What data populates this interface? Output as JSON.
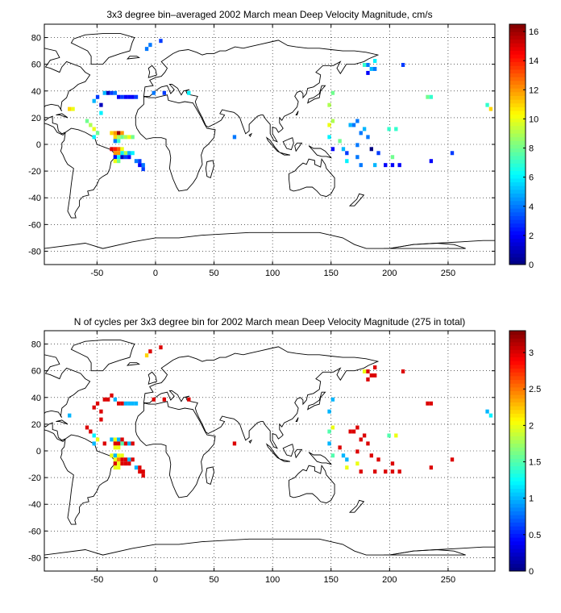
{
  "chart_data": [
    {
      "type": "heatmap",
      "title": "3x3 degree bin–averaged 2002 March mean Deep Velocity Magnitude, cm/s",
      "xlim": [
        -95,
        290
      ],
      "ylim": [
        -90,
        90
      ],
      "xticks": [
        -50,
        0,
        50,
        100,
        150,
        200,
        250
      ],
      "yticks": [
        -80,
        -60,
        -40,
        -20,
        0,
        20,
        40,
        60,
        80
      ],
      "grid": true,
      "bin_size_deg": 3,
      "colorbar": {
        "min": 0,
        "max": 16.5,
        "ticks": [
          0,
          2,
          4,
          6,
          8,
          10,
          12,
          14,
          16
        ],
        "colormap": "jet"
      },
      "cells": [
        [
          -75,
          25,
          11
        ],
        [
          -72,
          25,
          10
        ],
        [
          -60,
          16,
          8
        ],
        [
          -57,
          13,
          9
        ],
        [
          -54,
          10,
          10
        ],
        [
          -51,
          7,
          8
        ],
        [
          -54,
          4,
          6
        ],
        [
          -48,
          22,
          6
        ],
        [
          -51,
          34,
          3
        ],
        [
          -45,
          37,
          5
        ],
        [
          -42,
          37,
          1
        ],
        [
          -39,
          37,
          3
        ],
        [
          -36,
          37,
          4
        ],
        [
          -33,
          34,
          2
        ],
        [
          -30,
          34,
          3
        ],
        [
          -27,
          34,
          2
        ],
        [
          -24,
          34,
          2
        ],
        [
          -21,
          34,
          2
        ],
        [
          -18,
          34,
          3
        ],
        [
          -54,
          31,
          5
        ],
        [
          -48,
          28,
          1
        ],
        [
          -39,
          7,
          11
        ],
        [
          -36,
          7,
          12
        ],
        [
          -33,
          7,
          16
        ],
        [
          -30,
          7,
          12
        ],
        [
          -36,
          4,
          11
        ],
        [
          -33,
          4,
          9
        ],
        [
          -30,
          4,
          8
        ],
        [
          -27,
          4,
          9
        ],
        [
          -24,
          4,
          10
        ],
        [
          -21,
          4,
          8
        ],
        [
          -36,
          1,
          4
        ],
        [
          -33,
          1,
          7
        ],
        [
          -39,
          -5,
          15
        ],
        [
          -36,
          -5,
          14
        ],
        [
          -33,
          -5,
          13
        ],
        [
          -30,
          -5,
          10
        ],
        [
          -36,
          -8,
          12
        ],
        [
          -33,
          -8,
          12
        ],
        [
          -30,
          -8,
          6
        ],
        [
          -27,
          -8,
          9
        ],
        [
          -24,
          -8,
          5
        ],
        [
          -21,
          -8,
          6
        ],
        [
          -36,
          -11,
          2
        ],
        [
          -33,
          -11,
          6
        ],
        [
          -30,
          -11,
          1
        ],
        [
          -27,
          -11,
          3
        ],
        [
          -24,
          -11,
          2
        ],
        [
          -36,
          -14,
          10
        ],
        [
          -33,
          -14,
          8
        ],
        [
          -18,
          -14,
          4
        ],
        [
          -15,
          -14,
          3
        ],
        [
          -15,
          -17,
          2
        ],
        [
          -12,
          -17,
          4
        ],
        [
          -12,
          -20,
          3
        ],
        [
          -9,
          70,
          4
        ],
        [
          -6,
          73,
          4
        ],
        [
          3,
          76,
          3
        ],
        [
          -3,
          37,
          4
        ],
        [
          6,
          37,
          3
        ],
        [
          27,
          37,
          6
        ],
        [
          66,
          4,
          4
        ],
        [
          147,
          28,
          9
        ],
        [
          150,
          37,
          8
        ],
        [
          147,
          13,
          10
        ],
        [
          150,
          16,
          9
        ],
        [
          147,
          4,
          6
        ],
        [
          150,
          -5,
          2
        ],
        [
          156,
          1,
          8
        ],
        [
          159,
          -5,
          5
        ],
        [
          162,
          -8,
          3
        ],
        [
          162,
          -14,
          6
        ],
        [
          165,
          13,
          5
        ],
        [
          168,
          13,
          4
        ],
        [
          171,
          16,
          4
        ],
        [
          174,
          7,
          4
        ],
        [
          171,
          -2,
          4
        ],
        [
          171,
          -11,
          4
        ],
        [
          174,
          -17,
          4
        ],
        [
          177,
          10,
          5
        ],
        [
          180,
          4,
          4
        ],
        [
          183,
          -5,
          0
        ],
        [
          186,
          -17,
          5
        ],
        [
          189,
          -8,
          3
        ],
        [
          195,
          -17,
          2
        ],
        [
          198,
          10,
          7
        ],
        [
          201,
          -11,
          8
        ],
        [
          201,
          -17,
          2
        ],
        [
          204,
          10,
          7
        ],
        [
          207,
          -17,
          2
        ],
        [
          234,
          -14,
          2
        ],
        [
          252,
          -8,
          3
        ],
        [
          177,
          58,
          7
        ],
        [
          180,
          58,
          4
        ],
        [
          180,
          52,
          2
        ],
        [
          183,
          55,
          5
        ],
        [
          186,
          61,
          6
        ],
        [
          186,
          55,
          4
        ],
        [
          210,
          58,
          3
        ],
        [
          231,
          34,
          8
        ],
        [
          234,
          34,
          7
        ],
        [
          285,
          25,
          11
        ],
        [
          282,
          28,
          7
        ]
      ]
    },
    {
      "type": "heatmap",
      "title": "N of cycles per 3x3 degree bin for 2002 March mean Deep Velocity Magnitude (275 in total)",
      "xlim": [
        -95,
        290
      ],
      "ylim": [
        -90,
        90
      ],
      "xticks": [
        -50,
        0,
        50,
        100,
        150,
        200,
        250
      ],
      "yticks": [
        -80,
        -60,
        -40,
        -20,
        0,
        20,
        40,
        60,
        80
      ],
      "grid": true,
      "bin_size_deg": 3,
      "colorbar": {
        "min": 0,
        "max": 3.3,
        "ticks": [
          0,
          0.5,
          1,
          1.5,
          2,
          2.5,
          3
        ],
        "colormap": "jet"
      },
      "cells": [
        [
          -75,
          25,
          1
        ],
        [
          -60,
          16,
          3
        ],
        [
          -57,
          13,
          3
        ],
        [
          -54,
          10,
          1.2
        ],
        [
          -51,
          7,
          2
        ],
        [
          -54,
          4,
          1
        ],
        [
          -48,
          22,
          3
        ],
        [
          -51,
          34,
          3
        ],
        [
          -45,
          37,
          3
        ],
        [
          -42,
          37,
          3
        ],
        [
          -39,
          40,
          3
        ],
        [
          -36,
          37,
          1
        ],
        [
          -33,
          34,
          3
        ],
        [
          -30,
          34,
          3
        ],
        [
          -27,
          34,
          1
        ],
        [
          -24,
          34,
          1
        ],
        [
          -21,
          34,
          1
        ],
        [
          -18,
          34,
          1
        ],
        [
          -54,
          31,
          3
        ],
        [
          -48,
          28,
          3
        ],
        [
          -39,
          7,
          1
        ],
        [
          -36,
          7,
          2
        ],
        [
          -33,
          7,
          1
        ],
        [
          -30,
          7,
          3
        ],
        [
          -36,
          4,
          3
        ],
        [
          -33,
          4,
          3
        ],
        [
          -30,
          4,
          1.5
        ],
        [
          -27,
          4,
          3
        ],
        [
          -24,
          4,
          1
        ],
        [
          -21,
          4,
          3
        ],
        [
          -36,
          1,
          2
        ],
        [
          -33,
          1,
          2
        ],
        [
          -45,
          4,
          3
        ],
        [
          -39,
          -5,
          2
        ],
        [
          -36,
          -5,
          1
        ],
        [
          -33,
          -5,
          2
        ],
        [
          -30,
          -5,
          2
        ],
        [
          -36,
          -8,
          2
        ],
        [
          -33,
          -8,
          2.5
        ],
        [
          -30,
          -8,
          3
        ],
        [
          -27,
          -8,
          3
        ],
        [
          -24,
          -8,
          1
        ],
        [
          -21,
          -8,
          3
        ],
        [
          -36,
          -11,
          3
        ],
        [
          -33,
          -11,
          2
        ],
        [
          -30,
          -11,
          3
        ],
        [
          -27,
          -11,
          3
        ],
        [
          -24,
          -11,
          3
        ],
        [
          -36,
          -14,
          2
        ],
        [
          -33,
          -14,
          2
        ],
        [
          -18,
          -14,
          1
        ],
        [
          -15,
          -14,
          3
        ],
        [
          -15,
          -17,
          3
        ],
        [
          -12,
          -17,
          3
        ],
        [
          -12,
          -20,
          3
        ],
        [
          -9,
          70,
          2.2
        ],
        [
          -6,
          73,
          3
        ],
        [
          3,
          76,
          3
        ],
        [
          -3,
          37,
          3
        ],
        [
          6,
          37,
          3
        ],
        [
          27,
          37,
          3
        ],
        [
          66,
          4,
          3
        ],
        [
          147,
          28,
          1
        ],
        [
          150,
          37,
          1
        ],
        [
          147,
          13,
          1.5
        ],
        [
          150,
          16,
          2
        ],
        [
          147,
          4,
          1
        ],
        [
          150,
          -5,
          1.5
        ],
        [
          156,
          1,
          3
        ],
        [
          159,
          -5,
          1
        ],
        [
          162,
          -8,
          1
        ],
        [
          162,
          -14,
          2
        ],
        [
          165,
          13,
          3
        ],
        [
          168,
          13,
          3
        ],
        [
          171,
          16,
          3
        ],
        [
          174,
          7,
          3
        ],
        [
          171,
          -2,
          3
        ],
        [
          171,
          -11,
          2
        ],
        [
          174,
          -17,
          3
        ],
        [
          177,
          10,
          3
        ],
        [
          180,
          4,
          3
        ],
        [
          183,
          -5,
          3
        ],
        [
          186,
          -17,
          3
        ],
        [
          189,
          -8,
          3
        ],
        [
          195,
          -17,
          3
        ],
        [
          198,
          10,
          1.5
        ],
        [
          201,
          -11,
          3
        ],
        [
          201,
          -17,
          3
        ],
        [
          204,
          10,
          2
        ],
        [
          207,
          -17,
          3
        ],
        [
          234,
          -14,
          3
        ],
        [
          252,
          -8,
          3
        ],
        [
          177,
          58,
          2
        ],
        [
          180,
          58,
          3
        ],
        [
          180,
          52,
          3
        ],
        [
          183,
          55,
          3
        ],
        [
          186,
          61,
          3
        ],
        [
          186,
          55,
          3
        ],
        [
          210,
          58,
          3
        ],
        [
          231,
          34,
          3
        ],
        [
          234,
          34,
          3
        ],
        [
          285,
          25,
          1.2
        ],
        [
          282,
          28,
          1
        ]
      ]
    }
  ]
}
